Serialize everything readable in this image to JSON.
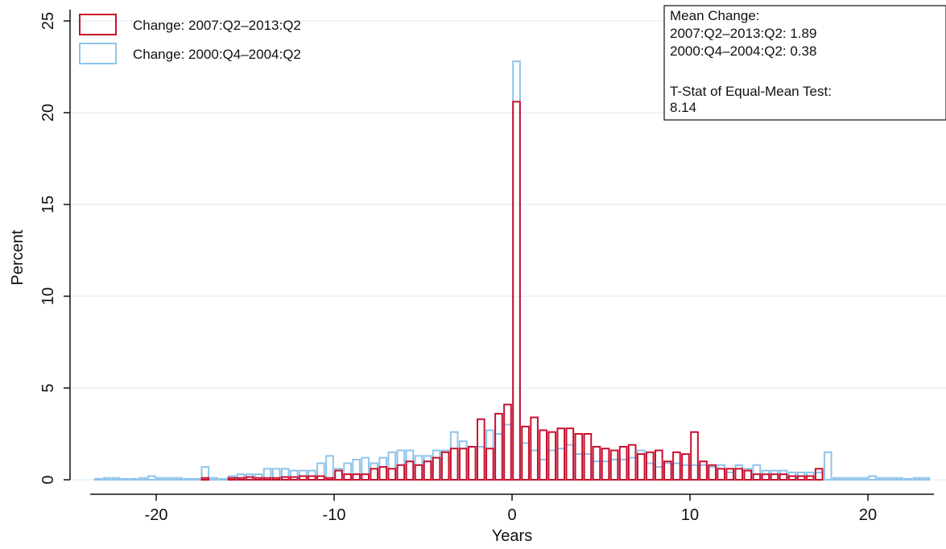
{
  "chart_data": {
    "type": "bar",
    "subtype": "overlaid-histogram",
    "xlabel": "Years",
    "ylabel": "Percent",
    "xlim": [
      -23.5,
      23.5
    ],
    "ylim": [
      0,
      25
    ],
    "x_ticks": [
      -20,
      -10,
      0,
      10,
      20
    ],
    "y_ticks": [
      0,
      5,
      10,
      15,
      20,
      25
    ],
    "x_tick_labels": [
      "-20",
      "-10",
      "0",
      "10",
      "20"
    ],
    "y_tick_labels": [
      "0",
      "5",
      "10",
      "15",
      "20",
      "25"
    ],
    "grid": true,
    "legend_placement": "top-left",
    "bin_width": 0.5,
    "series": [
      {
        "name": "Change: 2007:Q2–2013:Q2",
        "color": "#c8102e",
        "x": [
          -17.25,
          -15.75,
          -15.25,
          -14.75,
          -14.25,
          -13.75,
          -13.25,
          -12.75,
          -12.25,
          -11.75,
          -11.25,
          -10.75,
          -10.25,
          -9.75,
          -9.25,
          -8.75,
          -8.25,
          -7.75,
          -7.25,
          -6.75,
          -6.25,
          -5.75,
          -5.25,
          -4.75,
          -4.25,
          -3.75,
          -3.25,
          -2.75,
          -2.25,
          -1.75,
          -1.25,
          -0.75,
          -0.25,
          0.25,
          0.75,
          1.25,
          1.75,
          2.25,
          2.75,
          3.25,
          3.75,
          4.25,
          4.75,
          5.25,
          5.75,
          6.25,
          6.75,
          7.25,
          7.75,
          8.25,
          8.75,
          9.25,
          9.75,
          10.25,
          10.75,
          11.25,
          11.75,
          12.25,
          12.75,
          13.25,
          13.75,
          14.25,
          14.75,
          15.25,
          15.75,
          16.25,
          16.75,
          17.25
        ],
        "values": [
          0.1,
          0.1,
          0.1,
          0.15,
          0.1,
          0.1,
          0.1,
          0.15,
          0.15,
          0.2,
          0.2,
          0.2,
          0.1,
          0.5,
          0.3,
          0.3,
          0.3,
          0.6,
          0.7,
          0.6,
          0.8,
          1.0,
          0.8,
          1.0,
          1.2,
          1.5,
          1.7,
          1.7,
          1.8,
          3.3,
          1.7,
          3.6,
          4.1,
          20.6,
          2.9,
          3.4,
          2.7,
          2.6,
          2.8,
          2.8,
          2.5,
          2.5,
          1.8,
          1.7,
          1.6,
          1.8,
          1.9,
          1.4,
          1.5,
          1.6,
          1.0,
          1.5,
          1.4,
          2.6,
          1.0,
          0.8,
          0.6,
          0.6,
          0.6,
          0.5,
          0.3,
          0.3,
          0.3,
          0.3,
          0.2,
          0.2,
          0.2,
          0.6
        ]
      },
      {
        "name": "Change: 2000:Q4–2004:Q2",
        "color": "#8ec4ea",
        "x": [
          -23.25,
          -22.75,
          -22.25,
          -21.75,
          -21.25,
          -20.75,
          -20.25,
          -19.75,
          -19.25,
          -18.75,
          -18.25,
          -17.75,
          -17.25,
          -16.75,
          -16.25,
          -15.75,
          -15.25,
          -14.75,
          -14.25,
          -13.75,
          -13.25,
          -12.75,
          -12.25,
          -11.75,
          -11.25,
          -10.75,
          -10.25,
          -9.75,
          -9.25,
          -8.75,
          -8.25,
          -7.75,
          -7.25,
          -6.75,
          -6.25,
          -5.75,
          -5.25,
          -4.75,
          -4.25,
          -3.75,
          -3.25,
          -2.75,
          -2.25,
          -1.75,
          -1.25,
          -0.75,
          -0.25,
          0.25,
          0.75,
          1.25,
          1.75,
          2.25,
          2.75,
          3.25,
          3.75,
          4.25,
          4.75,
          5.25,
          5.75,
          6.25,
          6.75,
          7.25,
          7.75,
          8.25,
          8.75,
          9.25,
          9.75,
          10.25,
          10.75,
          11.25,
          11.75,
          12.25,
          12.75,
          13.25,
          13.75,
          14.25,
          14.75,
          15.25,
          15.75,
          16.25,
          16.75,
          17.25,
          17.75,
          18.25,
          18.75,
          19.25,
          19.75,
          20.25,
          20.75,
          21.25,
          21.75,
          22.25,
          22.75,
          23.25
        ],
        "values": [
          0.05,
          0.1,
          0.1,
          0.05,
          0.05,
          0.1,
          0.2,
          0.1,
          0.1,
          0.1,
          0.05,
          0.05,
          0.7,
          0.1,
          0.05,
          0.2,
          0.3,
          0.3,
          0.3,
          0.6,
          0.6,
          0.6,
          0.5,
          0.5,
          0.5,
          0.9,
          1.3,
          0.6,
          0.9,
          1.1,
          1.2,
          0.9,
          1.2,
          1.5,
          1.6,
          1.6,
          1.3,
          1.3,
          1.6,
          1.6,
          2.6,
          2.1,
          1.8,
          1.8,
          2.7,
          2.5,
          3.0,
          22.8,
          2.0,
          1.6,
          1.1,
          1.6,
          1.7,
          1.9,
          1.4,
          1.4,
          1.0,
          1.0,
          1.1,
          1.1,
          1.2,
          1.6,
          0.9,
          0.7,
          0.9,
          0.9,
          0.8,
          0.8,
          0.8,
          0.7,
          0.8,
          0.4,
          0.8,
          0.6,
          0.8,
          0.5,
          0.5,
          0.5,
          0.4,
          0.4,
          0.4,
          0.4,
          1.5,
          0.1,
          0.1,
          0.1,
          0.1,
          0.2,
          0.1,
          0.1,
          0.1,
          0.05,
          0.1,
          0.1
        ]
      }
    ],
    "annotation": {
      "lines": [
        "Mean Change:",
        "2007:Q2–2013:Q2: 1.89",
        "2000:Q4–2004:Q2: 0.38",
        "",
        "T-Stat of Equal-Mean Test:",
        "8.14"
      ]
    }
  }
}
